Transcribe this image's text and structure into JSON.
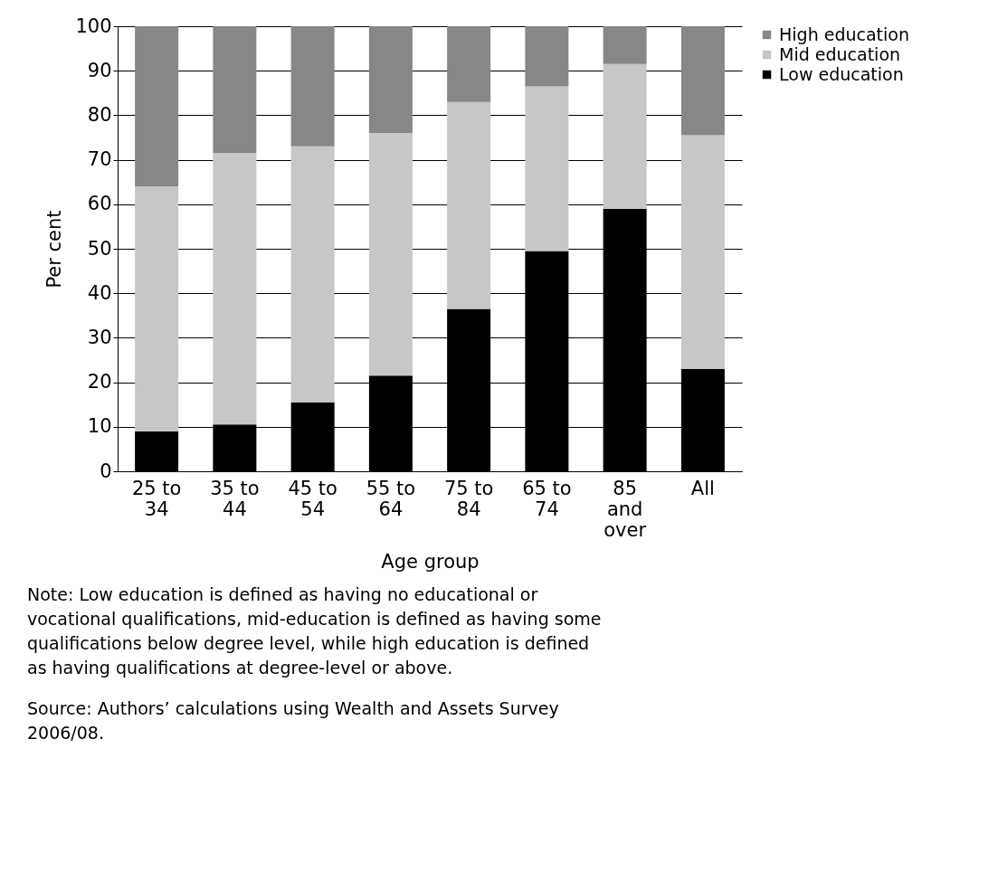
{
  "chart_data": {
    "type": "bar",
    "stacked": true,
    "categories": [
      "25 to 34",
      "35 to 44",
      "45 to 54",
      "55 to 64",
      "75 to 84",
      "65 to 74",
      "85 and over",
      "All"
    ],
    "series": [
      {
        "name": "Low education",
        "color": "#000000",
        "values": [
          9,
          10.5,
          15.5,
          21.5,
          36.5,
          49.5,
          59,
          23
        ]
      },
      {
        "name": "Mid education",
        "color": "#c6c7c8",
        "values": [
          55,
          61,
          57.5,
          54.5,
          46.5,
          37,
          32.5,
          52.5
        ]
      },
      {
        "name": "High education",
        "color": "#868788",
        "values": [
          36,
          28.5,
          27,
          24,
          17,
          13.5,
          8.5,
          24.5
        ]
      }
    ],
    "xlabel": "Age group",
    "ylabel": "Per cent",
    "ylim": [
      0,
      100
    ],
    "yticks": [
      0,
      10,
      20,
      30,
      40,
      50,
      60,
      70,
      80,
      90,
      100
    ],
    "grid": "y",
    "legend": "right",
    "annotations": [
      "Note: Low education is defined as having no educational or vocational qualifications, mid-education is defined as having some qualifications below degree level, while high education is defined as having qualifications at degree-level or above.",
      "Source: Authors’ calculations using Wealth and Assets Survey 2006/08."
    ]
  }
}
